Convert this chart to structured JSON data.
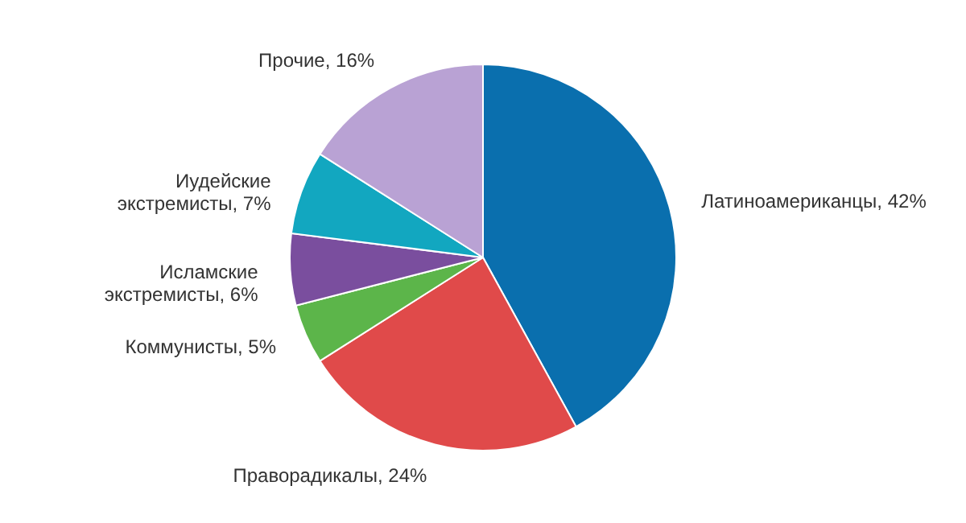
{
  "chart_data": {
    "type": "pie",
    "categories": [
      "Латиноамериканцы",
      "Праворадикалы",
      "Коммунисты",
      "Исламские экстремисты",
      "Иудейские экстремисты",
      "Прочие"
    ],
    "values": [
      42,
      24,
      5,
      6,
      7,
      16
    ],
    "colors": [
      "#0a6fae",
      "#e04a4a",
      "#5cb54a",
      "#7a4e9e",
      "#12a7c0",
      "#b9a2d4"
    ],
    "value_labels": [
      "42%",
      "24%",
      "5%",
      "6%",
      "7%",
      "16%"
    ]
  }
}
